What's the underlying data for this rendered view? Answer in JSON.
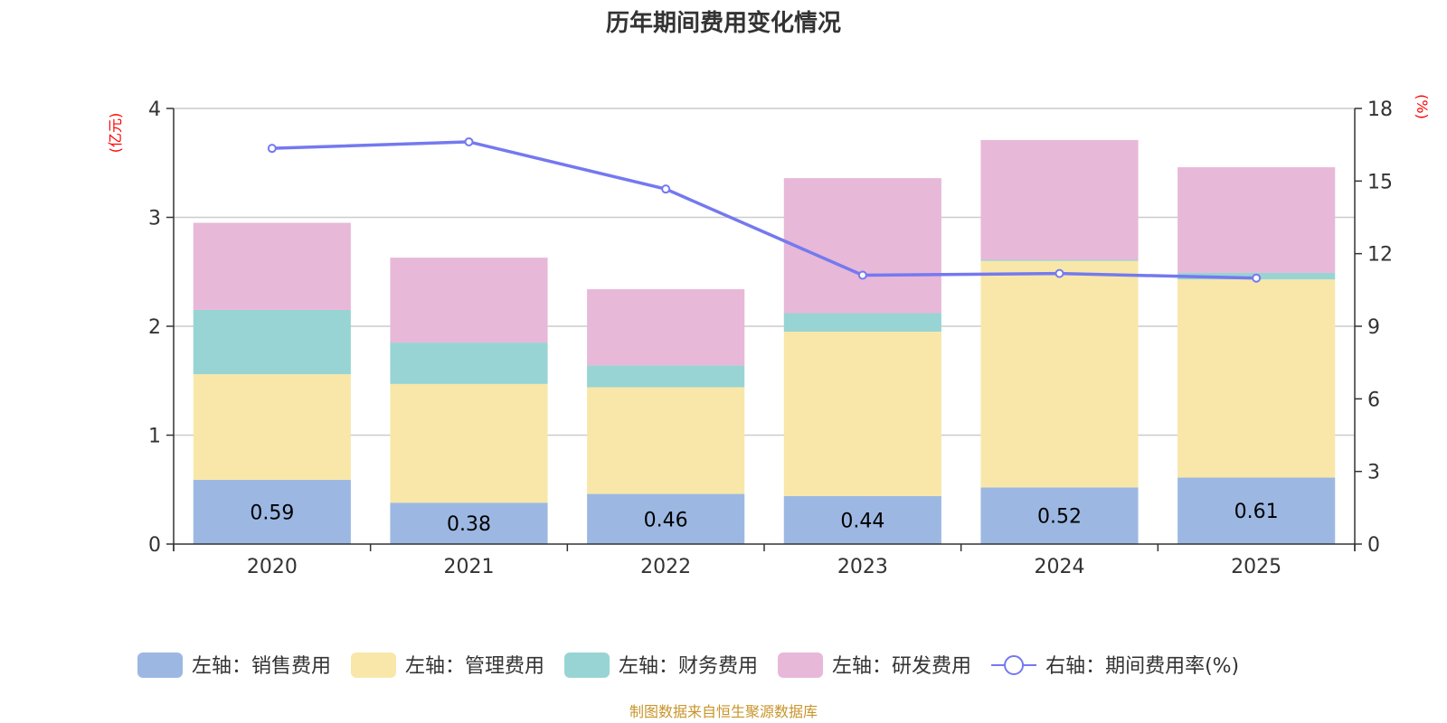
{
  "chart_data": {
    "type": "bar",
    "subtype": "stacked-bar-with-line",
    "title": "历年期间费用变化情况",
    "categories": [
      "2020",
      "2021",
      "2022",
      "2023",
      "2024",
      "2025"
    ],
    "left_axis": {
      "unit_label": "(亿元)",
      "ylim": [
        0,
        4
      ],
      "ticks": [
        0,
        1,
        2,
        3,
        4
      ]
    },
    "right_axis": {
      "unit_label": "(%)",
      "ylim": [
        0,
        18
      ],
      "ticks": [
        0,
        3,
        6,
        9,
        12,
        15,
        18
      ]
    },
    "grid": true,
    "series": [
      {
        "name": "左轴：销售费用",
        "axis": "left",
        "type": "bar",
        "color": "#9cb8e2",
        "values": [
          0.59,
          0.38,
          0.46,
          0.44,
          0.52,
          0.61
        ],
        "show_labels": true
      },
      {
        "name": "左轴：管理费用",
        "axis": "left",
        "type": "bar",
        "color": "#f8e7a9",
        "values": [
          0.97,
          1.09,
          0.98,
          1.51,
          2.08,
          1.82
        ]
      },
      {
        "name": "左轴：财务费用",
        "axis": "left",
        "type": "bar",
        "color": "#98d4d4",
        "values": [
          0.59,
          0.38,
          0.2,
          0.17,
          0.01,
          0.06
        ]
      },
      {
        "name": "左轴：研发费用",
        "axis": "left",
        "type": "bar",
        "color": "#e7b8d8",
        "values": [
          0.8,
          0.78,
          0.7,
          1.24,
          1.1,
          0.97
        ]
      },
      {
        "name": "右轴：期间费用率(%)",
        "axis": "right",
        "type": "line",
        "color": "#7479ef",
        "values": [
          16.35,
          16.62,
          14.67,
          11.11,
          11.18,
          10.99
        ]
      }
    ],
    "legend_position": "bottom",
    "source_note": "制图数据来自恒生聚源数据库"
  }
}
